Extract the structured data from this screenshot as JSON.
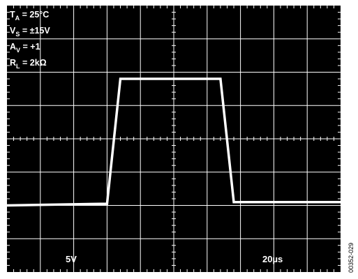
{
  "chart_data": {
    "type": "line",
    "title": "",
    "xlabel": "",
    "ylabel": "",
    "divisions": {
      "x": 10,
      "y": 8
    },
    "grid": true,
    "background": "#000000",
    "trace_color": "#ffffff",
    "grid_color": "#ffffff",
    "conditions": [
      {
        "main": "T",
        "sub": "A",
        "rest": " = 25°C"
      },
      {
        "main": "V",
        "sub": "S",
        "rest": " = ±15V"
      },
      {
        "main": "A",
        "sub": "V",
        "rest": " = +1"
      },
      {
        "main": "R",
        "sub": "L",
        "rest": " = 2kΩ"
      }
    ],
    "scale": {
      "vertical": "5V",
      "horizontal": "20µs"
    },
    "series": [
      {
        "x": [
          0,
          3,
          3.4,
          6.4,
          6.8,
          10
        ],
        "y": [
          -2.0,
          -1.95,
          1.8,
          1.8,
          -1.9,
          -1.9
        ]
      }
    ]
  },
  "figure_id": "00352-029"
}
